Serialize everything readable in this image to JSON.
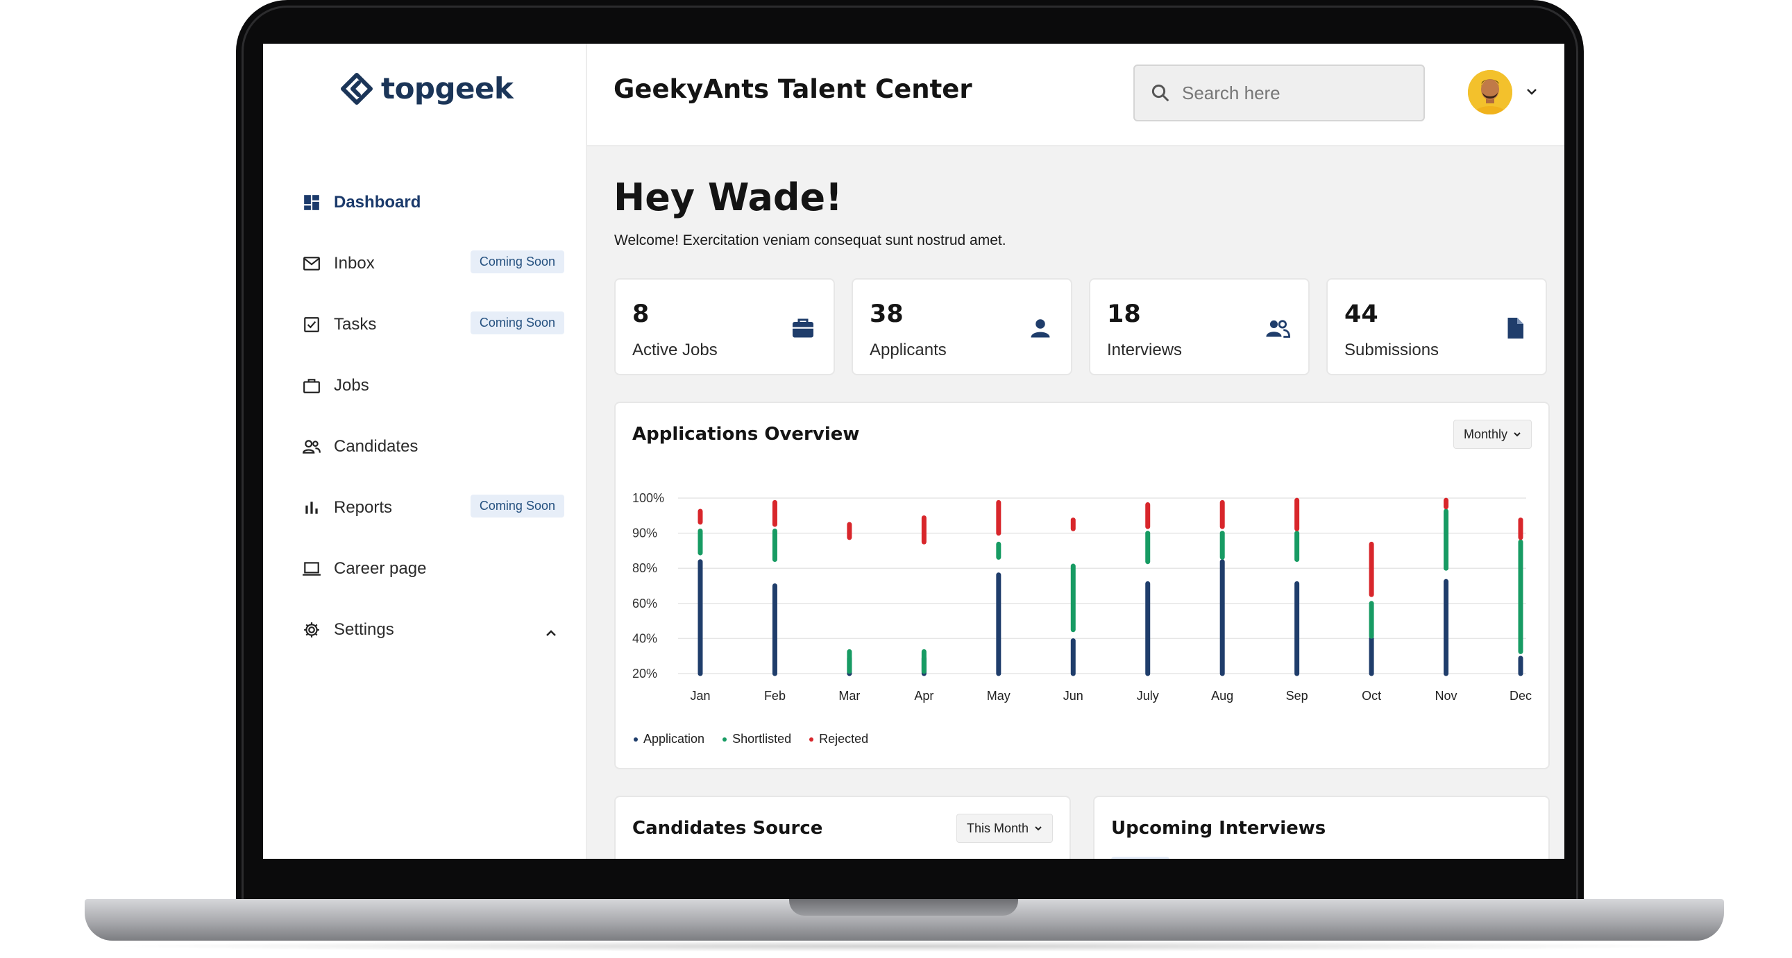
{
  "app": {
    "brand": "topgeek",
    "title": "GeekyAnts Talent Center",
    "accent": "#1b3a6b"
  },
  "sidebar": {
    "items": [
      {
        "label": "Dashboard",
        "icon": "dashboard-icon",
        "active": true
      },
      {
        "label": "Inbox",
        "icon": "mail-icon",
        "badge": "Coming Soon"
      },
      {
        "label": "Tasks",
        "icon": "checkbox-icon",
        "badge": "Coming Soon"
      },
      {
        "label": "Jobs",
        "icon": "briefcase-icon"
      },
      {
        "label": "Candidates",
        "icon": "people-icon"
      },
      {
        "label": "Reports",
        "icon": "bar-chart-icon",
        "badge": "Coming Soon"
      },
      {
        "label": "Career page",
        "icon": "laptop-icon"
      },
      {
        "label": "Settings",
        "icon": "gear-icon",
        "expand": "chevron-up-icon"
      }
    ]
  },
  "header": {
    "search_placeholder": "Search here"
  },
  "main": {
    "greeting": "Hey Wade!",
    "welcome": "Welcome! Exercitation veniam consequat sunt nostrud amet.",
    "stats": [
      {
        "value": "8",
        "label": "Active Jobs",
        "icon": "briefcase-icon"
      },
      {
        "value": "38",
        "label": "Applicants",
        "icon": "person-icon"
      },
      {
        "value": "18",
        "label": "Interviews",
        "icon": "people-icon"
      },
      {
        "value": "44",
        "label": "Submissions",
        "icon": "document-icon"
      }
    ],
    "overview": {
      "title": "Applications Overview",
      "range": "Monthly"
    },
    "source": {
      "title": "Candidates Source",
      "range": "This Month"
    },
    "interviews": {
      "title": "Upcoming Interviews"
    }
  },
  "chart_data": {
    "type": "bar",
    "subtype": "stacked-range",
    "categories": [
      "Jan",
      "Feb",
      "Mar",
      "Apr",
      "May",
      "Jun",
      "July",
      "Aug",
      "Sep",
      "Oct",
      "Nov",
      "Dec"
    ],
    "y_ticks": [
      "100%",
      "90%",
      "80%",
      "60%",
      "40%",
      "20%"
    ],
    "series": [
      {
        "name": "Application",
        "color": "#1f3d6b",
        "values": [
          [
            20,
            71
          ],
          [
            20,
            60
          ],
          [
            20,
            27
          ],
          [
            20,
            27
          ],
          [
            20,
            65
          ],
          [
            20,
            35
          ],
          [
            20,
            61
          ],
          [
            20,
            71
          ],
          [
            20,
            61
          ],
          [
            20,
            36
          ],
          [
            20,
            62
          ],
          [
            20,
            27
          ]
        ]
      },
      {
        "name": "Shortlisted",
        "color": "#179b63",
        "values": [
          [
            75,
            85
          ],
          [
            72,
            85
          ],
          [
            21,
            30
          ],
          [
            21,
            30
          ],
          [
            73,
            79
          ],
          [
            40,
            69
          ],
          [
            71,
            84
          ],
          [
            73,
            84
          ],
          [
            72,
            84
          ],
          [
            37,
            52
          ],
          [
            68,
            94
          ],
          [
            30,
            80
          ]
        ]
      },
      {
        "name": "Rejected",
        "color": "#d8262b",
        "values": [
          [
            89,
            94
          ],
          [
            88,
            98
          ],
          [
            82,
            88
          ],
          [
            80,
            91
          ],
          [
            84,
            98
          ],
          [
            86,
            90
          ],
          [
            87,
            97
          ],
          [
            87,
            98
          ],
          [
            86,
            99
          ],
          [
            56,
            79
          ],
          [
            96,
            99
          ],
          [
            82,
            90
          ]
        ]
      }
    ],
    "grid": true,
    "legend": "bottom-left"
  }
}
